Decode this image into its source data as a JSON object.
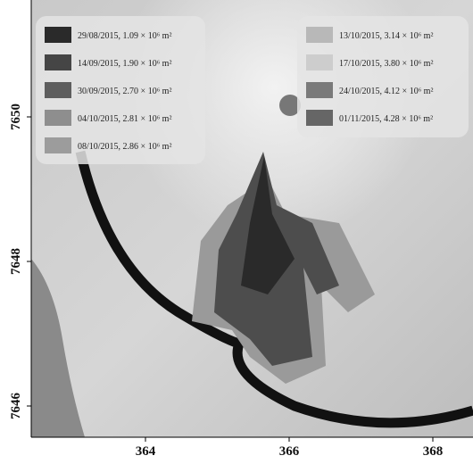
{
  "map": {
    "x_ticks": [
      "364",
      "366",
      "368"
    ],
    "y_ticks": [
      "7646",
      "7648",
      "7650"
    ],
    "legend_left": [
      {
        "label": "29/08/2015, 1.09 × 10⁶ m²",
        "color": "#2a2a2a"
      },
      {
        "label": "14/09/2015, 1.90 × 10⁶ m²",
        "color": "#454545"
      },
      {
        "label": "30/09/2015, 2.70 × 10⁶ m²",
        "color": "#5e5e5e"
      },
      {
        "label": "04/10/2015, 2.81 × 10⁶ m²",
        "color": "#8e8e8e"
      },
      {
        "label": "08/10/2015, 2.86 × 10⁶ m²",
        "color": "#9c9c9c"
      }
    ],
    "legend_right": [
      {
        "label": "13/10/2015, 3.14 × 10⁶ m²",
        "color": "#b8b8b8"
      },
      {
        "label": "17/10/2015, 3.80 × 10⁶ m²",
        "color": "#cdcdcd"
      },
      {
        "label": "24/10/2015, 4.12 × 10⁶ m²",
        "color": "#7a7a7a"
      },
      {
        "label": "01/11/2015, 4.28 × 10⁶ m²",
        "color": "#666666"
      }
    ]
  }
}
